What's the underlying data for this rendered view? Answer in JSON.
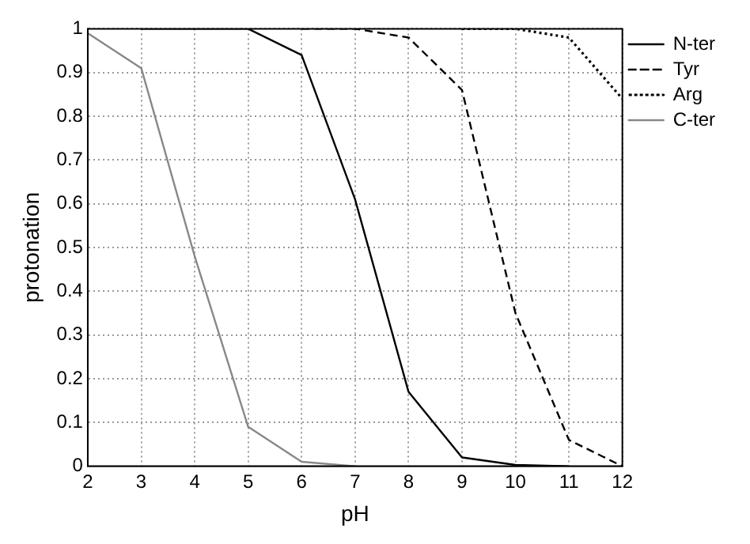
{
  "chart_data": {
    "type": "line",
    "xlabel": "pH",
    "ylabel": "protonation",
    "xlim": [
      2,
      12
    ],
    "xticks": [
      2,
      3,
      4,
      5,
      6,
      7,
      8,
      9,
      10,
      11,
      12
    ],
    "ylim": [
      0,
      1
    ],
    "yticks": [
      0,
      0.1,
      0.2,
      0.3,
      0.4,
      0.5,
      0.6,
      0.7,
      0.8,
      0.9,
      1
    ],
    "grid": true,
    "legend": "top right",
    "marker": "none",
    "series": [
      {
        "name": "N-ter",
        "color": "#000000",
        "line_style": "solid",
        "x": [
          3,
          4,
          5,
          6,
          7,
          8,
          9,
          10,
          11
        ],
        "values": [
          1,
          1,
          1,
          0.94,
          0.61,
          0.17,
          0.02,
          0.003,
          0
        ]
      },
      {
        "name": "Tyr",
        "color": "#000000",
        "line_style": "dashed",
        "x": [
          6,
          7,
          8,
          9,
          10,
          11,
          12
        ],
        "values": [
          1,
          1,
          0.98,
          0.86,
          0.35,
          0.06,
          0
        ]
      },
      {
        "name": "Arg",
        "color": "#000000",
        "line_style": "dotted",
        "x": [
          9,
          10,
          11,
          12
        ],
        "values": [
          1,
          1,
          0.98,
          0.84
        ]
      },
      {
        "name": "C-ter",
        "color": "#888888",
        "line_style": "solid",
        "x": [
          2,
          3,
          4,
          5,
          6,
          7
        ],
        "values": [
          0.99,
          0.91,
          0.48,
          0.09,
          0.01,
          0
        ]
      }
    ]
  }
}
